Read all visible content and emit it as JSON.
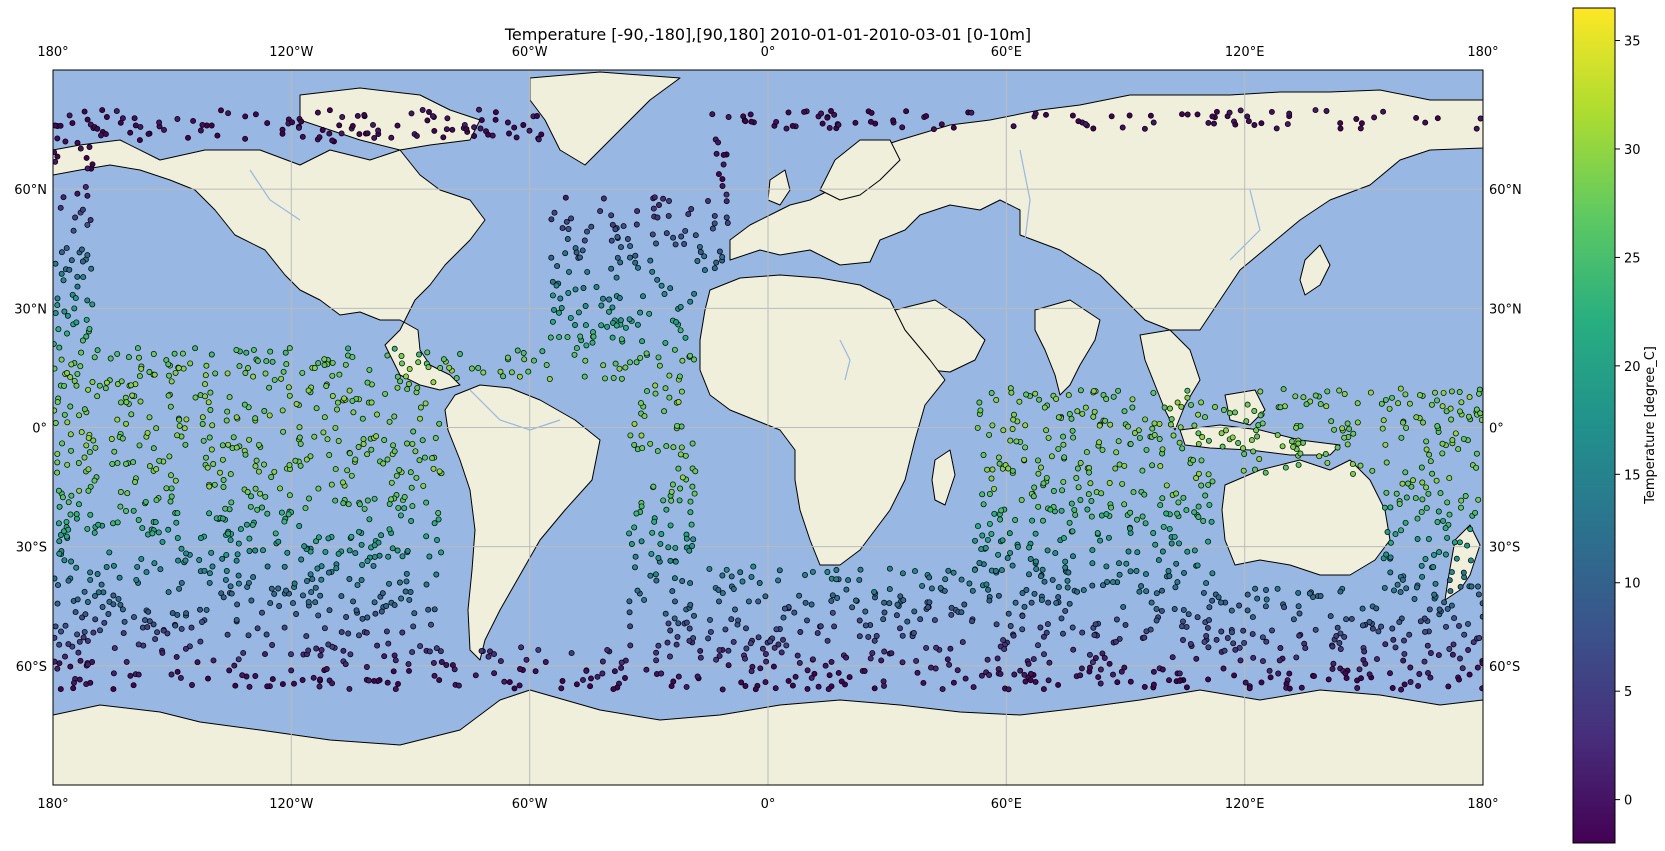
{
  "title": "Temperature [-90,-180],[90,180] 2010-01-01-2010-03-01 [0-10m]",
  "map": {
    "projection": "PlateCarree",
    "extent": {
      "lon": [
        -180,
        180
      ],
      "lat": [
        -90,
        90
      ]
    },
    "colors": {
      "ocean": "#98b7e2",
      "land": "#efefdb",
      "border": "#000000",
      "river": "#98b7e2",
      "grid": "#bbbbbb"
    },
    "lon_ticks": [
      {
        "value": -180,
        "label": "180°"
      },
      {
        "value": -120,
        "label": "120°W"
      },
      {
        "value": -60,
        "label": "60°W"
      },
      {
        "value": 0,
        "label": "0°"
      },
      {
        "value": 60,
        "label": "60°E"
      },
      {
        "value": 120,
        "label": "120°E"
      },
      {
        "value": 180,
        "label": "180°"
      }
    ],
    "lat_ticks": [
      {
        "value": 60,
        "label": "60°N"
      },
      {
        "value": 30,
        "label": "30°N"
      },
      {
        "value": 0,
        "label": "0°"
      },
      {
        "value": -30,
        "label": "30°S"
      },
      {
        "value": -60,
        "label": "60°S"
      }
    ]
  },
  "colorbar": {
    "label": "Temperature [degree_C]",
    "colormap": "viridis",
    "range": [
      -2,
      36.5
    ],
    "ticks": [
      0,
      5,
      10,
      15,
      20,
      25,
      30,
      35
    ]
  }
}
